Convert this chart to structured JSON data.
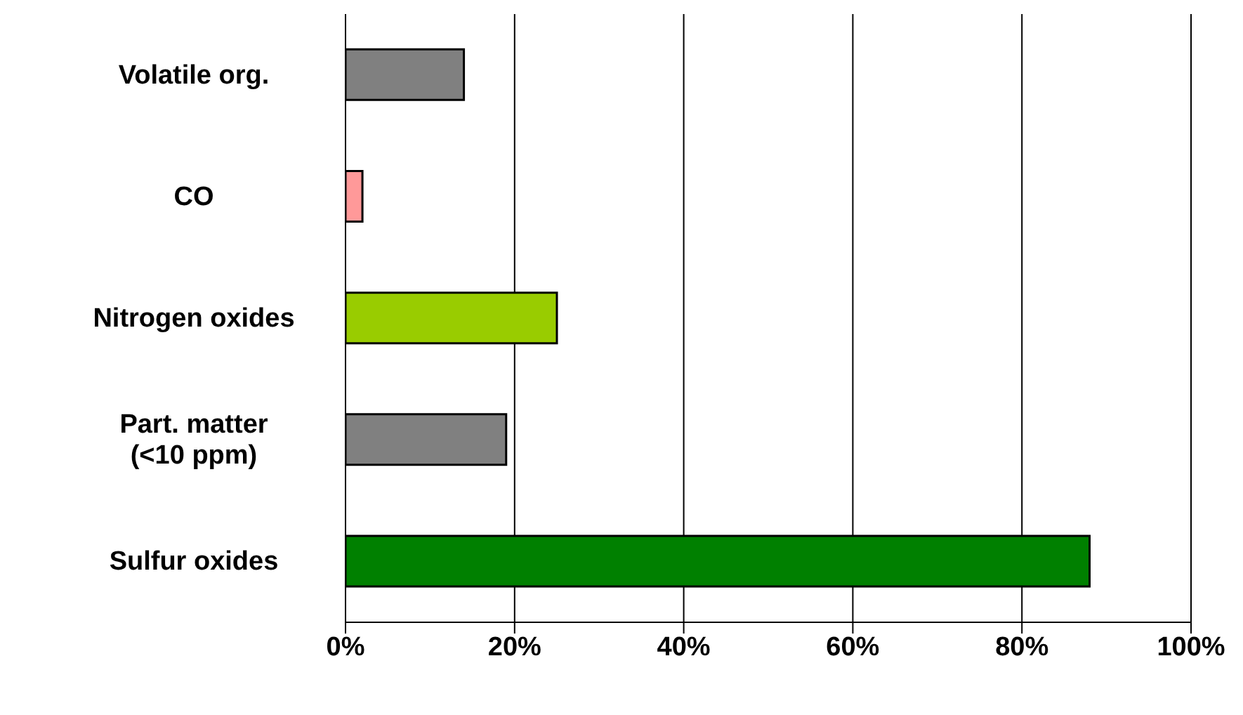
{
  "chart_data": {
    "type": "bar",
    "orientation": "horizontal",
    "categories": [
      "Volatile org.",
      "CO",
      "Nitrogen oxides",
      "Part. matter (<10 ppm)",
      "Sulfur oxides"
    ],
    "values": [
      14,
      2,
      25,
      19,
      88
    ],
    "colors": [
      "#808080",
      "#ff9999",
      "#99cc00",
      "#808080",
      "#008000"
    ],
    "xlim": [
      0,
      100
    ],
    "xticks": [
      {
        "value": 0,
        "label": "0%"
      },
      {
        "value": 20,
        "label": "20%"
      },
      {
        "value": 40,
        "label": "40%"
      },
      {
        "value": 60,
        "label": "60%"
      },
      {
        "value": 80,
        "label": "80%"
      },
      {
        "value": 100,
        "label": "100%"
      }
    ],
    "grid": "x"
  }
}
